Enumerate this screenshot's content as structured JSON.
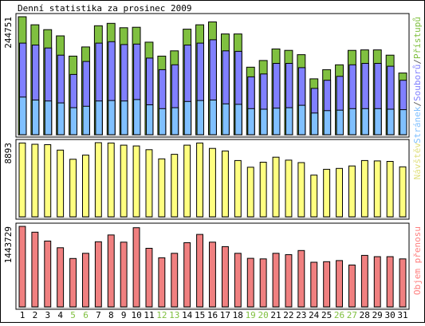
{
  "chart_data": [
    {
      "type": "bar",
      "title": "Denní statistika za prosinec 2009",
      "ymax_label": "244751",
      "side_label_parts": [
        "Stránek",
        "/",
        "Souborů",
        "/",
        "Přístupů"
      ],
      "side_label_colors": [
        "#80c0ff",
        "#606060",
        "#8080ff",
        "#606060",
        "#80c040"
      ],
      "categories": [
        "1",
        "2",
        "3",
        "4",
        "5",
        "6",
        "7",
        "8",
        "9",
        "10",
        "11",
        "12",
        "13",
        "14",
        "15",
        "16",
        "17",
        "18",
        "19",
        "20",
        "21",
        "22",
        "23",
        "24",
        "25",
        "26",
        "27",
        "28",
        "29",
        "30",
        "31"
      ],
      "weekend_days": [
        "5",
        "6",
        "12",
        "13",
        "19",
        "20",
        "26",
        "27"
      ],
      "series": [
        {
          "name": "Přístupů",
          "color": "#80c040",
          "values": [
            244751,
            228000,
            218000,
            205000,
            163000,
            182000,
            226000,
            231000,
            222000,
            223000,
            192000,
            163000,
            174000,
            219000,
            228000,
            234000,
            209000,
            209000,
            140000,
            154000,
            178000,
            175000,
            166000,
            116000,
            135000,
            145000,
            175000,
            176000,
            176000,
            165000,
            128000
          ]
        },
        {
          "name": "Souborů",
          "color": "#8080ff",
          "values": [
            190000,
            186000,
            180000,
            165000,
            125000,
            152000,
            190000,
            193000,
            187000,
            188000,
            159000,
            135000,
            145000,
            186000,
            190000,
            197000,
            174000,
            173000,
            120000,
            126000,
            148000,
            148000,
            139000,
            96000,
            113000,
            121000,
            145000,
            148000,
            148000,
            142000,
            113000
          ]
        },
        {
          "name": "Stránek",
          "color": "#80c0ff",
          "values": [
            78000,
            72000,
            70000,
            66000,
            56000,
            59000,
            70000,
            71000,
            70000,
            73000,
            62000,
            54000,
            56000,
            69000,
            71000,
            72000,
            64000,
            63000,
            54000,
            53000,
            55000,
            56000,
            61000,
            45000,
            50000,
            51000,
            54000,
            54000,
            54000,
            53000,
            52000
          ]
        }
      ]
    },
    {
      "type": "bar",
      "ymax_label": "8893",
      "side_label": "Návštěv",
      "side_label_color": "#e0e080",
      "categories": [
        "1",
        "2",
        "3",
        "4",
        "5",
        "6",
        "7",
        "8",
        "9",
        "10",
        "11",
        "12",
        "13",
        "14",
        "15",
        "16",
        "17",
        "18",
        "19",
        "20",
        "21",
        "22",
        "23",
        "24",
        "25",
        "26",
        "27",
        "28",
        "29",
        "30",
        "31"
      ],
      "series": [
        {
          "name": "Návštěv",
          "color": "#ffff80",
          "values": [
            8850,
            8700,
            8650,
            8000,
            6900,
            7400,
            8893,
            8850,
            8600,
            8500,
            8050,
            6950,
            7500,
            8600,
            8850,
            8200,
            7900,
            6750,
            5950,
            6550,
            7150,
            6800,
            6500,
            5000,
            5700,
            5800,
            6100,
            6750,
            6700,
            6650,
            6000
          ]
        }
      ]
    },
    {
      "type": "bar",
      "ymax_label": "1443729",
      "side_label": "Objem přenosu",
      "side_label_color": "#ff8080",
      "categories": [
        "1",
        "2",
        "3",
        "4",
        "5",
        "6",
        "7",
        "8",
        "9",
        "10",
        "11",
        "12",
        "13",
        "14",
        "15",
        "16",
        "17",
        "18",
        "19",
        "20",
        "21",
        "22",
        "23",
        "24",
        "25",
        "26",
        "27",
        "28",
        "29",
        "30",
        "31"
      ],
      "series": [
        {
          "name": "Objem přenosu",
          "color": "#f08080",
          "values": [
            1443729,
            1340000,
            1180000,
            1060000,
            868000,
            960000,
            1168000,
            1290000,
            1160000,
            1420000,
            1050000,
            880000,
            960000,
            1150000,
            1300000,
            1160000,
            1080000,
            960000,
            870000,
            860000,
            960000,
            936000,
            1010000,
            800000,
            810000,
            830000,
            750000,
            924000,
            900000,
            900000,
            860000
          ]
        }
      ]
    }
  ]
}
